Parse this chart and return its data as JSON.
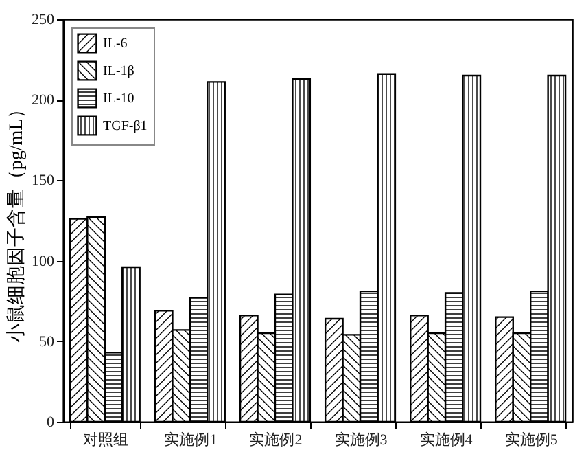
{
  "chart_data": {
    "type": "bar",
    "ylabel": "小鼠细胞因子含量（pg/mL）",
    "categories": [
      "对照组",
      "实施例1",
      "实施例2",
      "实施例3",
      "实施例4",
      "实施例5"
    ],
    "series": [
      {
        "name": "IL-6",
        "color": "#000000",
        "values": [
          126,
          69,
          66,
          64,
          66,
          65
        ]
      },
      {
        "name": "IL-1β",
        "color": "#000000",
        "values": [
          127,
          57,
          55,
          54,
          55,
          55
        ]
      },
      {
        "name": "IL-10",
        "color": "#000000",
        "values": [
          43,
          77,
          79,
          81,
          80,
          81
        ]
      },
      {
        "name": "TGF-β1",
        "color": "#000000",
        "values": [
          96,
          211,
          213,
          216,
          215,
          215
        ]
      }
    ],
    "ylim": [
      0,
      250
    ],
    "yticks": [
      0,
      50,
      100,
      150,
      200,
      250
    ],
    "grid": false,
    "legend": "top left"
  }
}
